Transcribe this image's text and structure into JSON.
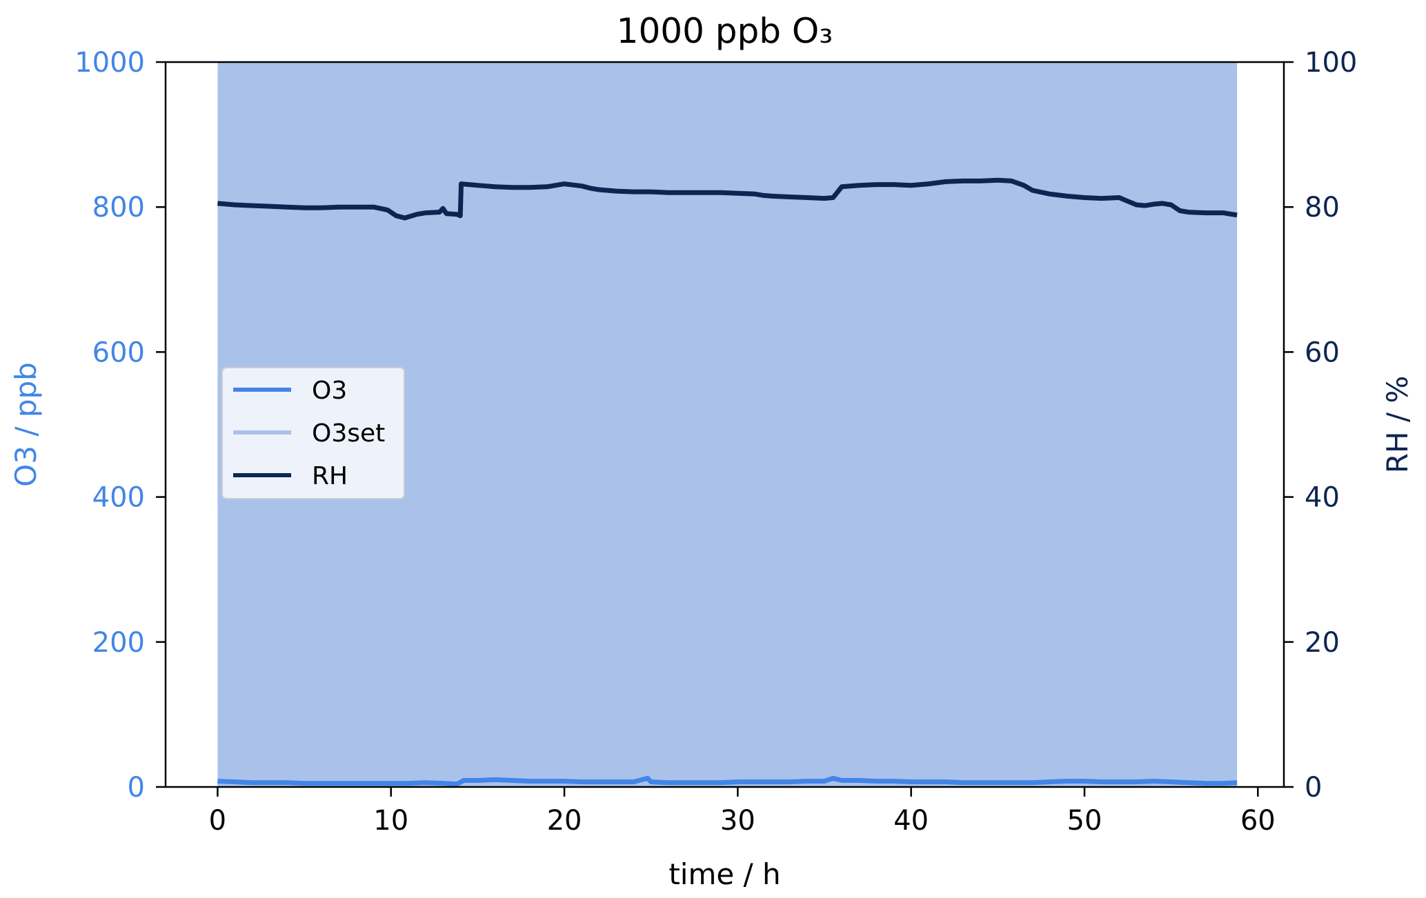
{
  "chart_data": {
    "type": "line",
    "title": "1000 ppb O₃",
    "xlabel": "time / h",
    "ylabel_left": "O3 / ppb",
    "ylabel_right": "RH / %",
    "xlim": [
      -3,
      61.5
    ],
    "ylim_left": [
      0,
      1000
    ],
    "ylim_right": [
      0,
      100
    ],
    "x_ticks": [
      0,
      10,
      20,
      30,
      40,
      50,
      60
    ],
    "y_left_ticks": [
      0,
      200,
      400,
      600,
      800,
      1000
    ],
    "y_right_ticks": [
      0,
      20,
      40,
      60,
      80,
      100
    ],
    "grid": false,
    "legend": {
      "position": "center-left",
      "entries": [
        "O3",
        "O3set",
        "RH"
      ]
    },
    "colors": {
      "o3": "#4285e8",
      "o3set": "#aac2ea",
      "rh": "#0d2552",
      "left_axis": "#4285e8",
      "right_axis": "#0d2552"
    },
    "series": [
      {
        "name": "O3",
        "axis": "left",
        "x": [
          0,
          1,
          2,
          3,
          4,
          5,
          6,
          7,
          8,
          9,
          10,
          11,
          12,
          13,
          13.8,
          14.2,
          15,
          16,
          17,
          18,
          19,
          20,
          21,
          22,
          23,
          24,
          24.8,
          25,
          26,
          27,
          28,
          29,
          30,
          31,
          32,
          33,
          34,
          35,
          35.5,
          36,
          37,
          38,
          39,
          40,
          41,
          42,
          43,
          44,
          45,
          46,
          47,
          48,
          49,
          50,
          51,
          52,
          53,
          54,
          55,
          56,
          57,
          58,
          58.8
        ],
        "y": [
          8,
          7,
          6,
          6,
          6,
          5,
          5,
          5,
          5,
          5,
          5,
          5,
          6,
          5,
          4,
          9,
          9,
          10,
          9,
          8,
          8,
          8,
          7,
          7,
          7,
          7,
          12,
          7,
          6,
          6,
          6,
          6,
          7,
          7,
          7,
          7,
          8,
          8,
          12,
          9,
          9,
          8,
          8,
          7,
          7,
          7,
          6,
          6,
          6,
          6,
          6,
          7,
          8,
          8,
          7,
          7,
          7,
          8,
          7,
          6,
          5,
          5,
          6
        ]
      },
      {
        "name": "O3set",
        "axis": "left",
        "x": [
          0,
          58.8
        ],
        "y": [
          1000,
          1000
        ]
      },
      {
        "name": "RH",
        "axis": "right",
        "x": [
          0,
          1,
          2,
          3,
          4,
          5,
          6,
          7,
          8,
          9,
          9.8,
          10.3,
          10.8,
          11.5,
          12,
          12.8,
          13,
          13.2,
          13.8,
          14.0,
          14.05,
          15,
          16,
          17,
          18,
          19,
          20,
          21,
          21.5,
          22,
          23,
          24,
          25,
          26,
          27,
          28,
          29,
          30,
          31,
          31.5,
          32,
          33,
          34,
          35,
          35.5,
          36,
          37,
          38,
          39,
          40,
          41,
          42,
          43,
          44,
          45,
          45.8,
          46.5,
          47,
          48,
          49,
          50,
          51,
          52,
          52.5,
          53,
          53.5,
          54,
          54.5,
          55,
          55.5,
          56,
          57,
          58,
          58.8
        ],
        "y": [
          80.5,
          80.3,
          80.2,
          80.1,
          80.0,
          79.9,
          79.9,
          80.0,
          80.0,
          80.0,
          79.6,
          78.8,
          78.5,
          79.0,
          79.2,
          79.3,
          79.8,
          79.1,
          79.0,
          78.8,
          83.2,
          83.0,
          82.8,
          82.7,
          82.7,
          82.8,
          83.2,
          82.9,
          82.6,
          82.4,
          82.2,
          82.1,
          82.1,
          82.0,
          82.0,
          82.0,
          82.0,
          81.9,
          81.8,
          81.6,
          81.5,
          81.4,
          81.3,
          81.2,
          81.3,
          82.8,
          83.0,
          83.1,
          83.1,
          83.0,
          83.2,
          83.5,
          83.6,
          83.6,
          83.7,
          83.6,
          83.0,
          82.3,
          81.8,
          81.5,
          81.3,
          81.2,
          81.3,
          80.8,
          80.3,
          80.2,
          80.4,
          80.5,
          80.3,
          79.5,
          79.3,
          79.2,
          79.2,
          78.9
        ]
      }
    ]
  }
}
